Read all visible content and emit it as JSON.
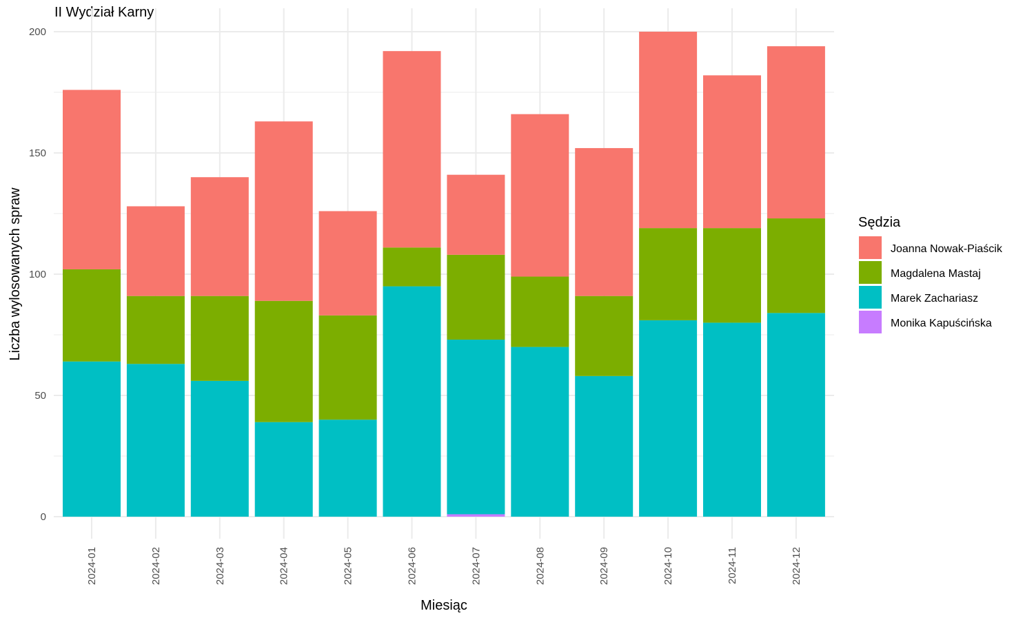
{
  "chart_data": {
    "type": "bar",
    "stacked": true,
    "title": "II Wydział Karny",
    "xlabel": "Miesiąc",
    "ylabel": "Liczba wylosowanych spraw",
    "ylim": [
      0,
      200
    ],
    "yticks": [
      0,
      50,
      100,
      150,
      200
    ],
    "grid": true,
    "legend_title": "Sędzia",
    "legend_position": "right",
    "categories": [
      "2024-01",
      "2024-02",
      "2024-03",
      "2024-04",
      "2024-05",
      "2024-06",
      "2024-07",
      "2024-08",
      "2024-09",
      "2024-10",
      "2024-11",
      "2024-12"
    ],
    "series": [
      {
        "name": "Monika Kapuścińska",
        "color": "#C77CFF",
        "values": [
          0,
          0,
          0,
          0,
          0,
          0,
          1,
          0,
          0,
          0,
          0,
          0
        ]
      },
      {
        "name": "Marek Zachariasz",
        "color": "#00BFC4",
        "values": [
          64,
          63,
          56,
          39,
          40,
          95,
          72,
          70,
          58,
          81,
          80,
          84
        ]
      },
      {
        "name": "Magdalena Mastaj",
        "color": "#7CAE00",
        "values": [
          38,
          28,
          35,
          50,
          43,
          16,
          35,
          29,
          33,
          38,
          39,
          39
        ]
      },
      {
        "name": "Joanna Nowak-Piaścik",
        "color": "#F8766D",
        "values": [
          74,
          37,
          49,
          74,
          43,
          81,
          33,
          67,
          61,
          81,
          63,
          71
        ]
      }
    ],
    "legend_order": [
      "Joanna Nowak-Piaścik",
      "Magdalena Mastaj",
      "Marek Zachariasz",
      "Monika Kapuścińska"
    ]
  }
}
